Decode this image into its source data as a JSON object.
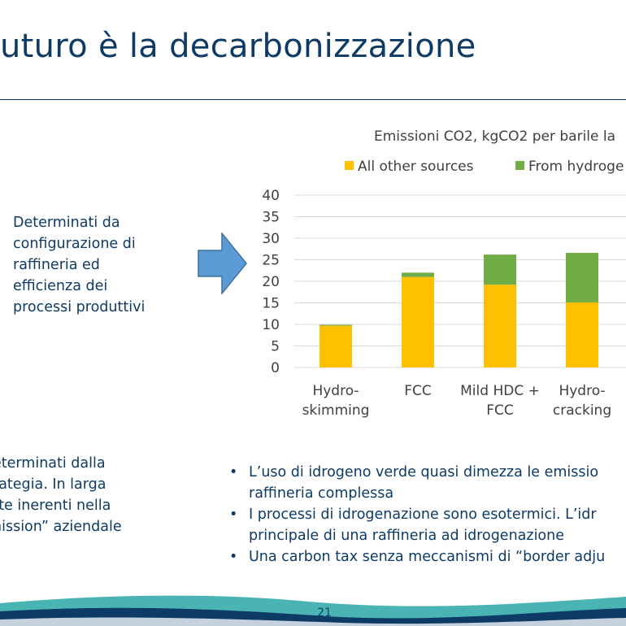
{
  "slide": {
    "title": "uturo è la decarbonizzazione",
    "page_number": "21"
  },
  "left_box": {
    "lines": [
      "Determinati da",
      "configurazione di",
      "raffineria ed",
      "efficienza dei",
      "processi produttivi"
    ]
  },
  "left_box2": {
    "lines": [
      "eterminati dalla",
      "rategia. In larga",
      "rte inerenti nella",
      "nission” aziendale"
    ]
  },
  "bullets": [
    {
      "lines": [
        "L’uso di idrogeno verde quasi dimezza le emissio",
        "raffineria complessa"
      ]
    },
    {
      "lines": [
        "I processi di idrogenazione sono esotermici. L’idr",
        "principale di una raffineria ad idrogenazione"
      ]
    },
    {
      "lines": [
        "Una carbon tax senza meccanismi di “border adju"
      ]
    }
  ],
  "colors": {
    "title": "#0d3b66",
    "arrow_fill": "#5b9bd5",
    "arrow_stroke": "#41719c",
    "other_sources": "#ffc000",
    "from_hydrogen": "#70ad47",
    "footer_teal": "#2aa6a6",
    "footer_navy": "#0d3b66"
  },
  "chart_data": {
    "type": "bar",
    "stacked": true,
    "title": "Emissioni CO2, kgCO2 per barile la",
    "categories": [
      [
        "Hydro-",
        "skimming"
      ],
      [
        "FCC"
      ],
      [
        "Mild HDC +",
        "FCC"
      ],
      [
        "Hydro-",
        "cracking"
      ]
    ],
    "series": [
      {
        "name": "All other sources",
        "color": "#ffc000",
        "values": [
          9.7,
          21,
          19.2,
          15.1
        ]
      },
      {
        "name": "From hydroge",
        "color": "#70ad47",
        "values": [
          0.2,
          1,
          7,
          11.5
        ]
      }
    ],
    "ylim": [
      0,
      40
    ],
    "yticks": [
      0,
      5,
      10,
      15,
      20,
      25,
      30,
      35,
      40
    ],
    "grid": true,
    "legend_position": "top"
  }
}
